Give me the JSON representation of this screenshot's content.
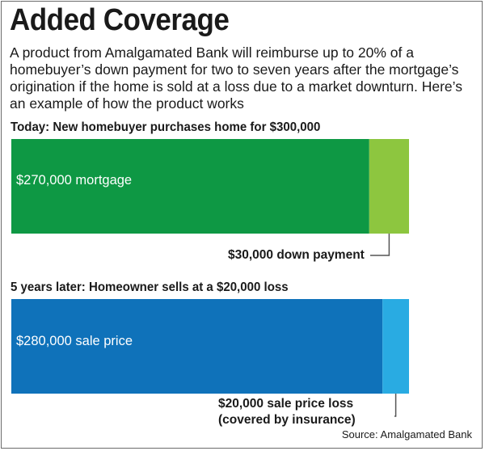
{
  "title": "Added Coverage",
  "intro": "A product from Amalgamated Bank will reimburse up to 20% of a homebuyer’s down payment for two to seven years after the mortgage’s origination if the home is sold at a loss due to a market downturn. Here’s an example of how the product works",
  "source": "Source: Amalgamated Bank",
  "colors": {
    "mortgage": "#0e9844",
    "down_payment": "#8dc63f",
    "sale_price": "#0f72ba",
    "loss": "#29abe2",
    "leader": "#555555"
  },
  "chart_data": [
    {
      "type": "bar",
      "orientation": "horizontal-stacked",
      "title": "Today: New homebuyer purchases home for $300,000",
      "total": 300000,
      "segments": [
        {
          "value": 270000,
          "label": "$270,000 mortgage"
        },
        {
          "value": 30000,
          "label": "$30,000 down payment"
        }
      ]
    },
    {
      "type": "bar",
      "orientation": "horizontal-stacked",
      "title": "5 years later: Homeowner sells at a $20,000 loss",
      "total": 300000,
      "segments": [
        {
          "value": 280000,
          "label": "$280,000 sale price"
        },
        {
          "value": 20000,
          "label": "$20,000 sale price loss",
          "label_line2": "(covered by insurance)"
        }
      ]
    }
  ]
}
